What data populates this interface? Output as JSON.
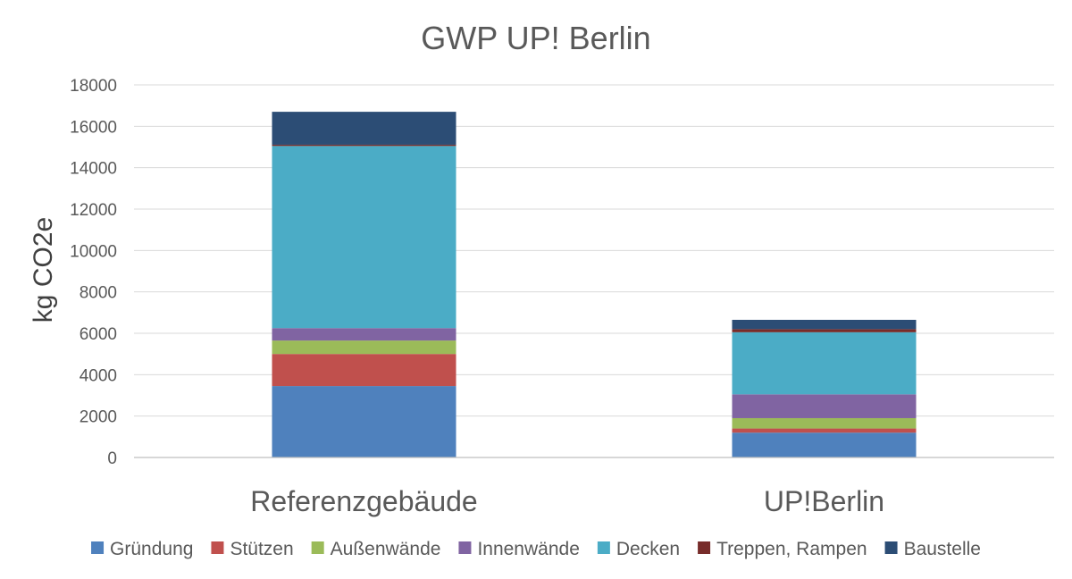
{
  "chart_data": {
    "type": "bar",
    "stacked": true,
    "title": "GWP UP! Berlin",
    "ylabel": "kg CO2e",
    "xlabel": "",
    "ylim": [
      0,
      18000
    ],
    "yticks": [
      0,
      2000,
      4000,
      6000,
      8000,
      10000,
      12000,
      14000,
      16000,
      18000
    ],
    "grid": true,
    "legend_position": "bottom",
    "categories": [
      "Referenzgebäude",
      "UP!Berlin"
    ],
    "series": [
      {
        "name": "Gründung",
        "color": "#4f81bd",
        "values": [
          3450,
          1200
        ]
      },
      {
        "name": "Stützen",
        "color": "#c0504d",
        "values": [
          1550,
          200
        ]
      },
      {
        "name": "Außenwände",
        "color": "#9bbb59",
        "values": [
          650,
          500
        ]
      },
      {
        "name": "Innenwände",
        "color": "#8064a2",
        "values": [
          600,
          1150
        ]
      },
      {
        "name": "Decken",
        "color": "#4bacc6",
        "values": [
          8800,
          3000
        ]
      },
      {
        "name": "Treppen, Rampen",
        "color": "#772c2a",
        "values": [
          60,
          150
        ]
      },
      {
        "name": "Baustelle",
        "color": "#2c4d75",
        "values": [
          1590,
          450
        ]
      }
    ]
  }
}
